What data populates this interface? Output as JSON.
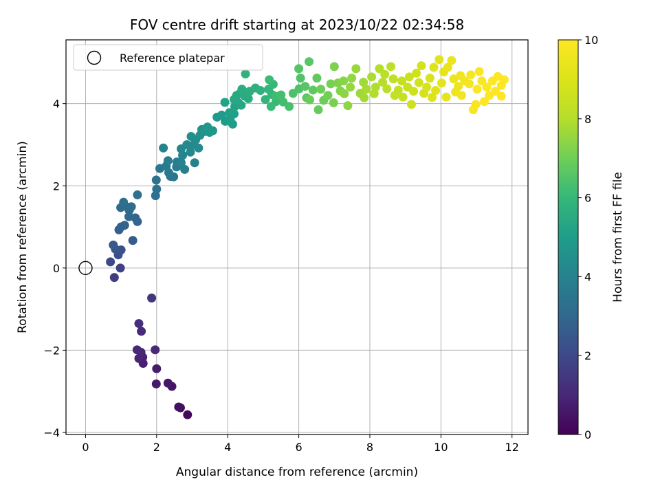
{
  "chart_data": {
    "type": "scatter",
    "title": "FOV centre drift starting at 2023/10/22 02:34:58",
    "xlabel": "Angular distance from reference (arcmin)",
    "ylabel": "Rotation from reference (arcmin)",
    "xlim": [
      -0.55,
      12.45
    ],
    "ylim": [
      -4.05,
      5.55
    ],
    "xticks": [
      0,
      2,
      4,
      6,
      8,
      10,
      12
    ],
    "yticks": [
      -4,
      -2,
      0,
      2,
      4
    ],
    "grid": true,
    "colormap": "viridis",
    "colorbar": {
      "label": "Hours from first FF file",
      "range": [
        0,
        10
      ],
      "ticks": [
        0,
        2,
        4,
        6,
        8,
        10
      ]
    },
    "legend": {
      "placement": "top-left",
      "entries": [
        {
          "label": "Reference platepar",
          "marker": "open-circle"
        }
      ]
    },
    "reference_point": {
      "x": 0,
      "y": 0
    },
    "points": [
      [
        2.87,
        -3.57,
        0.2
      ],
      [
        2.67,
        -3.4,
        0.3
      ],
      [
        2.62,
        -3.38,
        0.35
      ],
      [
        2.43,
        -2.88,
        0.5
      ],
      [
        2.32,
        -2.8,
        0.55
      ],
      [
        1.99,
        -2.82,
        0.6
      ],
      [
        2.0,
        -2.45,
        0.7
      ],
      [
        1.62,
        -2.32,
        0.8
      ],
      [
        1.61,
        -2.17,
        0.85
      ],
      [
        1.5,
        -2.2,
        0.9
      ],
      [
        1.56,
        -2.05,
        0.95
      ],
      [
        1.45,
        -1.99,
        1.0
      ],
      [
        1.96,
        -1.99,
        1.05
      ],
      [
        1.57,
        -1.54,
        1.1
      ],
      [
        1.5,
        -1.35,
        1.2
      ],
      [
        1.86,
        -0.73,
        1.4
      ],
      [
        0.81,
        -0.23,
        1.6
      ],
      [
        0.98,
        0.0,
        1.8
      ],
      [
        0.7,
        0.15,
        2.0
      ],
      [
        0.92,
        0.32,
        2.2
      ],
      [
        1.0,
        0.44,
        2.3
      ],
      [
        0.84,
        0.46,
        2.4
      ],
      [
        0.78,
        0.56,
        2.5
      ],
      [
        1.33,
        0.67,
        2.6
      ],
      [
        0.94,
        0.93,
        2.7
      ],
      [
        1.1,
        1.04,
        2.8
      ],
      [
        1.0,
        1.0,
        2.85
      ],
      [
        1.46,
        1.13,
        2.9
      ],
      [
        1.4,
        1.22,
        2.95
      ],
      [
        1.22,
        1.25,
        3.0
      ],
      [
        1.23,
        1.4,
        3.05
      ],
      [
        0.99,
        1.47,
        3.1
      ],
      [
        1.18,
        1.48,
        3.15
      ],
      [
        1.29,
        1.49,
        3.2
      ],
      [
        1.07,
        1.6,
        3.25
      ],
      [
        1.46,
        1.78,
        3.3
      ],
      [
        1.97,
        1.76,
        3.35
      ],
      [
        2.0,
        1.92,
        3.4
      ],
      [
        1.99,
        2.14,
        3.45
      ],
      [
        2.48,
        2.22,
        3.5
      ],
      [
        2.39,
        2.23,
        3.55
      ],
      [
        2.09,
        2.42,
        3.6
      ],
      [
        2.34,
        2.32,
        3.65
      ],
      [
        2.27,
        2.48,
        3.7
      ],
      [
        2.56,
        2.46,
        3.75
      ],
      [
        2.79,
        2.4,
        3.8
      ],
      [
        2.32,
        2.61,
        3.85
      ],
      [
        2.57,
        2.58,
        3.9
      ],
      [
        2.69,
        2.56,
        3.95
      ],
      [
        2.19,
        2.92,
        4.0
      ],
      [
        3.07,
        2.56,
        4.05
      ],
      [
        2.73,
        2.74,
        4.1
      ],
      [
        2.69,
        2.9,
        4.15
      ],
      [
        2.95,
        2.82,
        4.2
      ],
      [
        2.85,
        3.0,
        4.25
      ],
      [
        3.04,
        3.0,
        4.3
      ],
      [
        3.18,
        2.92,
        4.35
      ],
      [
        3.1,
        3.12,
        4.4
      ],
      [
        2.97,
        3.2,
        4.45
      ],
      [
        3.22,
        3.23,
        4.5
      ],
      [
        3.27,
        3.37,
        4.55
      ],
      [
        3.36,
        3.32,
        4.6
      ],
      [
        3.49,
        3.3,
        4.65
      ],
      [
        3.43,
        3.43,
        4.7
      ],
      [
        3.58,
        3.34,
        4.75
      ],
      [
        3.7,
        3.67,
        4.8
      ],
      [
        3.83,
        3.72,
        4.85
      ],
      [
        3.93,
        3.57,
        4.9
      ],
      [
        4.14,
        3.5,
        4.95
      ],
      [
        4.07,
        3.64,
        5.0
      ],
      [
        4.05,
        3.78,
        5.05
      ],
      [
        4.18,
        3.75,
        5.1
      ],
      [
        3.92,
        4.03,
        5.15
      ],
      [
        4.2,
        3.93,
        5.2
      ],
      [
        4.3,
        4.02,
        5.25
      ],
      [
        4.38,
        3.96,
        5.3
      ],
      [
        4.18,
        4.1,
        5.35
      ],
      [
        4.25,
        4.2,
        5.4
      ],
      [
        4.35,
        4.25,
        5.45
      ],
      [
        4.48,
        4.18,
        5.5
      ],
      [
        4.58,
        4.12,
        5.55
      ],
      [
        4.4,
        4.35,
        5.6
      ],
      [
        4.62,
        4.3,
        5.65
      ],
      [
        4.78,
        4.38,
        5.7
      ],
      [
        4.92,
        4.32,
        5.75
      ],
      [
        4.5,
        4.72,
        5.8
      ],
      [
        5.06,
        4.1,
        5.85
      ],
      [
        5.15,
        4.35,
        5.9
      ],
      [
        5.24,
        4.22,
        5.95
      ],
      [
        5.28,
        4.47,
        6.0
      ],
      [
        5.36,
        4.05,
        6.05
      ],
      [
        5.22,
        3.93,
        6.1
      ],
      [
        5.17,
        4.58,
        6.15
      ],
      [
        5.35,
        4.18,
        6.2
      ],
      [
        5.56,
        4.04,
        6.25
      ],
      [
        5.5,
        4.21,
        6.3
      ],
      [
        5.73,
        3.93,
        6.35
      ],
      [
        5.84,
        4.25,
        6.4
      ],
      [
        6.01,
        4.36,
        6.45
      ],
      [
        6.05,
        4.62,
        6.5
      ],
      [
        6.0,
        4.85,
        6.55
      ],
      [
        6.18,
        4.42,
        6.6
      ],
      [
        6.29,
        5.02,
        6.65
      ],
      [
        6.22,
        4.14,
        6.7
      ],
      [
        6.4,
        4.33,
        6.75
      ],
      [
        6.51,
        4.62,
        6.8
      ],
      [
        6.55,
        3.85,
        6.85
      ],
      [
        6.31,
        4.09,
        6.9
      ],
      [
        6.7,
        4.08,
        6.95
      ],
      [
        6.62,
        4.35,
        7.0
      ],
      [
        6.82,
        4.2,
        7.05
      ],
      [
        6.9,
        4.48,
        7.1
      ],
      [
        6.98,
        4.02,
        7.15
      ],
      [
        7.0,
        4.9,
        7.2
      ],
      [
        7.1,
        4.5,
        7.25
      ],
      [
        7.17,
        4.31,
        7.3
      ],
      [
        7.26,
        4.55,
        7.35
      ],
      [
        7.28,
        4.24,
        7.4
      ],
      [
        7.38,
        3.95,
        7.45
      ],
      [
        7.49,
        4.62,
        7.5
      ],
      [
        7.45,
        4.4,
        7.55
      ],
      [
        7.61,
        4.85,
        7.6
      ],
      [
        7.73,
        4.25,
        7.65
      ],
      [
        7.82,
        4.52,
        7.7
      ],
      [
        7.84,
        4.14,
        7.75
      ],
      [
        7.9,
        4.35,
        7.8
      ],
      [
        8.05,
        4.65,
        7.85
      ],
      [
        8.16,
        4.4,
        7.9
      ],
      [
        8.12,
        4.24,
        7.95
      ],
      [
        8.27,
        4.85,
        8.0
      ],
      [
        8.36,
        4.52,
        8.05
      ],
      [
        8.42,
        4.71,
        8.1
      ],
      [
        8.48,
        4.36,
        8.15
      ],
      [
        8.59,
        4.9,
        8.2
      ],
      [
        8.66,
        4.6,
        8.25
      ],
      [
        8.7,
        4.2,
        8.3
      ],
      [
        8.8,
        4.33,
        8.35
      ],
      [
        8.9,
        4.55,
        8.4
      ],
      [
        8.93,
        4.16,
        8.45
      ],
      [
        9.06,
        4.4,
        8.5
      ],
      [
        9.11,
        4.65,
        8.55
      ],
      [
        9.17,
        3.98,
        8.6
      ],
      [
        9.23,
        4.3,
        8.65
      ],
      [
        9.31,
        4.74,
        8.7
      ],
      [
        9.38,
        4.51,
        8.75
      ],
      [
        9.45,
        4.92,
        8.8
      ],
      [
        9.52,
        4.25,
        8.85
      ],
      [
        9.6,
        4.4,
        8.9
      ],
      [
        9.69,
        4.62,
        8.95
      ],
      [
        9.75,
        4.15,
        9.0
      ],
      [
        9.8,
        4.88,
        9.05
      ],
      [
        9.85,
        4.32,
        9.1
      ],
      [
        9.95,
        5.07,
        9.15
      ],
      [
        10.02,
        4.5,
        9.2
      ],
      [
        10.08,
        4.77,
        9.25
      ],
      [
        10.15,
        4.16,
        9.3
      ],
      [
        10.19,
        4.88,
        9.35
      ],
      [
        10.3,
        5.05,
        9.4
      ],
      [
        10.36,
        4.6,
        9.45
      ],
      [
        10.41,
        4.28,
        9.5
      ],
      [
        10.49,
        4.42,
        9.55
      ],
      [
        10.55,
        4.68,
        9.6
      ],
      [
        10.58,
        4.2,
        9.65
      ],
      [
        10.67,
        4.55,
        9.7
      ],
      [
        10.8,
        4.48,
        9.75
      ],
      [
        10.84,
        4.7,
        9.8
      ],
      [
        10.91,
        3.85,
        9.82
      ],
      [
        10.98,
        3.98,
        9.85
      ],
      [
        11.02,
        4.35,
        9.88
      ],
      [
        11.08,
        4.78,
        9.9
      ],
      [
        11.15,
        4.55,
        9.92
      ],
      [
        11.22,
        4.05,
        9.95
      ],
      [
        11.29,
        4.4,
        9.97
      ],
      [
        11.36,
        4.2,
        9.98
      ],
      [
        11.45,
        4.55,
        9.99
      ],
      [
        11.53,
        4.3,
        10.0
      ],
      [
        11.6,
        4.66,
        10.0
      ],
      [
        11.7,
        4.44,
        10.0
      ],
      [
        11.78,
        4.58,
        10.0
      ],
      [
        11.7,
        4.18,
        10.0
      ]
    ]
  }
}
